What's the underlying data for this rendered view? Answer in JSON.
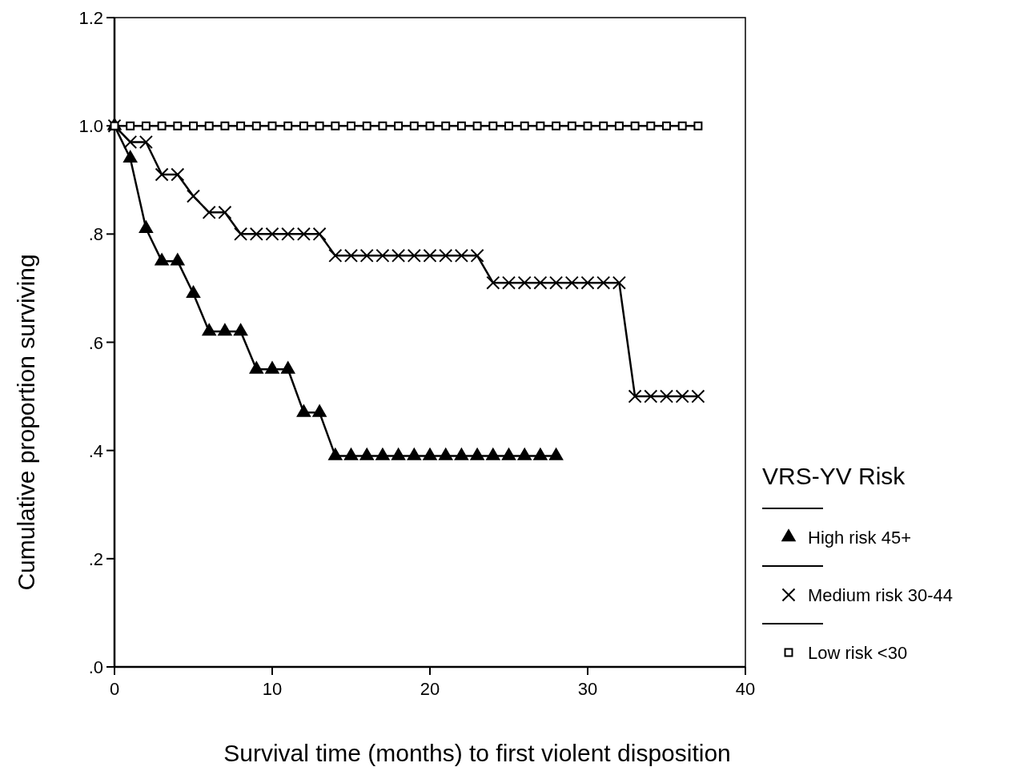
{
  "chart_data": {
    "type": "line",
    "xlabel": "Survival time (months) to first violent disposition",
    "ylabel": "Cumulative proportion surviving",
    "legend_title": "VRS-YV Risk",
    "legend": "right",
    "xlim": [
      0,
      40
    ],
    "xticks": [
      0,
      10,
      20,
      30,
      40
    ],
    "ylim": [
      0,
      1.2
    ],
    "yticks": [
      {
        "value": 0,
        "label": ".0"
      },
      {
        "value": 0.2,
        "label": ".2"
      },
      {
        "value": 0.4,
        "label": ".4"
      },
      {
        "value": 0.6,
        "label": ".6"
      },
      {
        "value": 0.8,
        "label": ".8"
      },
      {
        "value": 1,
        "label": "1.0"
      },
      {
        "value": 1.2,
        "label": "1.2"
      }
    ],
    "line_style": "solid",
    "series": [
      {
        "name": "High risk 45+",
        "color": "#000000",
        "marker": "triangle",
        "x": [
          0,
          1,
          2,
          3,
          4,
          5,
          6,
          7,
          8,
          9,
          10,
          11,
          12,
          13,
          14,
          15,
          16,
          17,
          18,
          19,
          20,
          21,
          22,
          23,
          24,
          25,
          26,
          27,
          28
        ],
        "values": [
          1,
          0.94,
          0.81,
          0.75,
          0.75,
          0.69,
          0.62,
          0.62,
          0.62,
          0.55,
          0.55,
          0.55,
          0.47,
          0.47,
          0.39,
          0.39,
          0.39,
          0.39,
          0.39,
          0.39,
          0.39,
          0.39,
          0.39,
          0.39,
          0.39,
          0.39,
          0.39,
          0.39,
          0.39
        ]
      },
      {
        "name": "Medium risk 30-44",
        "color": "#000000",
        "marker": "cross",
        "x": [
          0,
          1,
          2,
          3,
          4,
          5,
          6,
          7,
          8,
          9,
          10,
          11,
          12,
          13,
          14,
          15,
          16,
          17,
          18,
          19,
          20,
          21,
          22,
          23,
          24,
          25,
          26,
          27,
          28,
          29,
          30,
          31,
          32,
          33,
          34,
          35,
          36,
          37
        ],
        "values": [
          1,
          0.97,
          0.97,
          0.91,
          0.91,
          0.87,
          0.84,
          0.84,
          0.8,
          0.8,
          0.8,
          0.8,
          0.8,
          0.8,
          0.76,
          0.76,
          0.76,
          0.76,
          0.76,
          0.76,
          0.76,
          0.76,
          0.76,
          0.76,
          0.71,
          0.71,
          0.71,
          0.71,
          0.71,
          0.71,
          0.71,
          0.71,
          0.71,
          0.5,
          0.5,
          0.5,
          0.5,
          0.5
        ]
      },
      {
        "name": "Low  risk <30",
        "color": "#000000",
        "marker": "square",
        "x": [
          0,
          1,
          2,
          3,
          4,
          5,
          6,
          7,
          8,
          9,
          10,
          11,
          12,
          13,
          14,
          15,
          16,
          17,
          18,
          19,
          20,
          21,
          22,
          23,
          24,
          25,
          26,
          27,
          28,
          29,
          30,
          31,
          32,
          33,
          34,
          35,
          36,
          37
        ],
        "values": [
          1,
          1,
          1,
          1,
          1,
          1,
          1,
          1,
          1,
          1,
          1,
          1,
          1,
          1,
          1,
          1,
          1,
          1,
          1,
          1,
          1,
          1,
          1,
          1,
          1,
          1,
          1,
          1,
          1,
          1,
          1,
          1,
          1,
          1,
          1,
          1,
          1,
          1
        ]
      }
    ]
  }
}
